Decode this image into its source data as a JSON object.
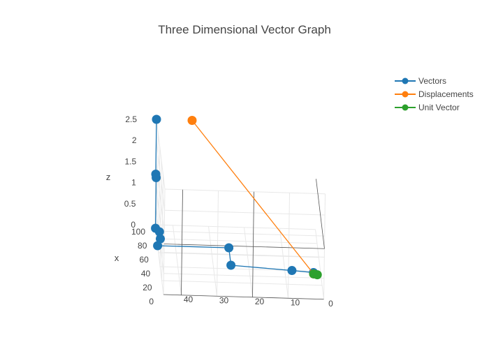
{
  "chart_data": {
    "type": "scatter3d",
    "title": "Three Dimensional Vector Graph",
    "axes": {
      "x": {
        "title": "x",
        "ticks": [
          "0",
          "20",
          "40",
          "60",
          "80",
          "100"
        ]
      },
      "y": {
        "title": "",
        "ticks": [
          "40",
          "30",
          "20",
          "10",
          "0"
        ]
      },
      "z": {
        "title": "z",
        "ticks": [
          "0",
          "0.5",
          "1",
          "1.5",
          "2",
          "2.5"
        ]
      }
    },
    "legend_position": "top-right",
    "series": [
      {
        "name": "Vectors",
        "color": "#1f77b4",
        "mode": "lines+markers",
        "points": [
          {
            "x": 100,
            "y": 45,
            "z": 2.5
          },
          {
            "x": 100,
            "y": 45,
            "z": 1.2
          },
          {
            "x": 95,
            "y": 45,
            "z": 1.2
          },
          {
            "x": 95,
            "y": 45,
            "z": 0
          },
          {
            "x": 90,
            "y": 44,
            "z": 0
          },
          {
            "x": 80,
            "y": 44,
            "z": 0
          },
          {
            "x": 70,
            "y": 45,
            "z": 0
          },
          {
            "x": 70,
            "y": 25,
            "z": 0
          },
          {
            "x": 45,
            "y": 25,
            "z": 0
          },
          {
            "x": 40,
            "y": 8,
            "z": 0
          },
          {
            "x": 38,
            "y": 2,
            "z": 0
          }
        ]
      },
      {
        "name": "Displacements",
        "color": "#ff7f0e",
        "mode": "lines+markers",
        "points": [
          {
            "x": 100,
            "y": 35,
            "z": 2.5
          },
          {
            "x": 36,
            "y": 2,
            "z": 0
          }
        ]
      },
      {
        "name": "Unit Vector",
        "color": "#2ca02c",
        "mode": "lines+markers",
        "points": [
          {
            "x": 36,
            "y": 2,
            "z": 0
          },
          {
            "x": 35,
            "y": 1,
            "z": 0
          }
        ]
      }
    ]
  }
}
